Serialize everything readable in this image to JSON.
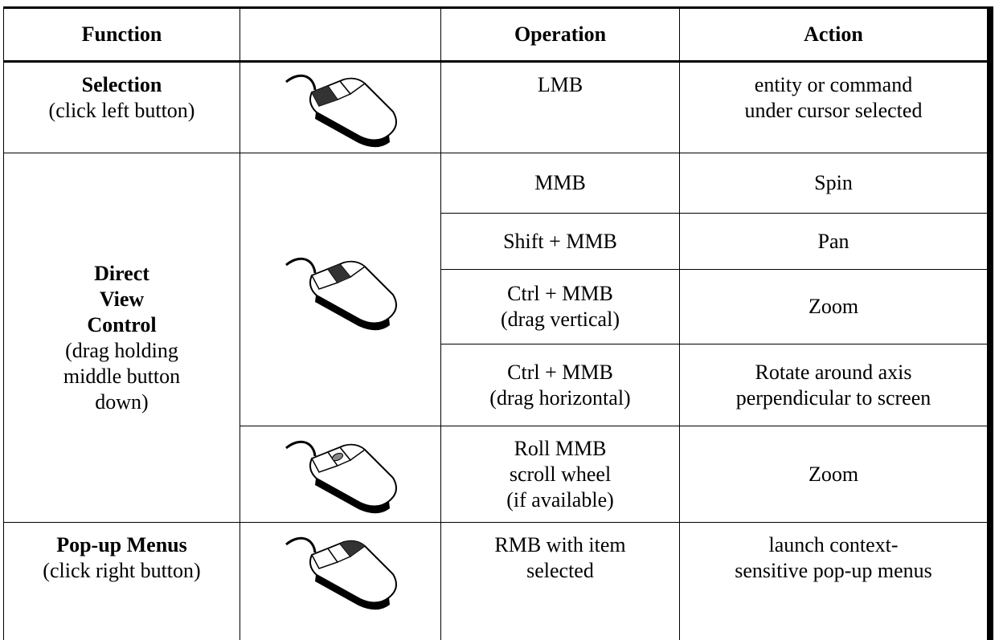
{
  "table": {
    "header": [
      "Function",
      "Operation",
      "Action"
    ],
    "rows": [
      {
        "function": {
          "title": "Selection",
          "note": "(click left button)"
        },
        "operations": [
          {
            "operation": "LMB",
            "action": "entity or command\nunder cursor selected"
          }
        ]
      },
      {
        "function": {
          "title": "Direct\nView\nControl",
          "note": "(drag holding\nmiddle button\ndown)"
        },
        "operations": [
          {
            "operation": "MMB",
            "action": "Spin"
          },
          {
            "operation": "Shift + MMB",
            "action": "Pan"
          },
          {
            "operation": "Ctrl + MMB\n(drag vertical)",
            "action": "Zoom"
          },
          {
            "operation": "Ctrl + MMB\n(drag horizontal)",
            "action": "Rotate around axis\nperpendicular to screen"
          },
          {
            "operation": "Roll MMB\nscroll wheel\n(if available)",
            "action": "Zoom"
          }
        ]
      },
      {
        "function": {
          "title": "Pop-up Menus",
          "note": "(click right button)"
        },
        "operations": [
          {
            "operation": "RMB with item\nselected",
            "action": "launch context-\nsensitive pop-up menus"
          }
        ]
      }
    ]
  }
}
